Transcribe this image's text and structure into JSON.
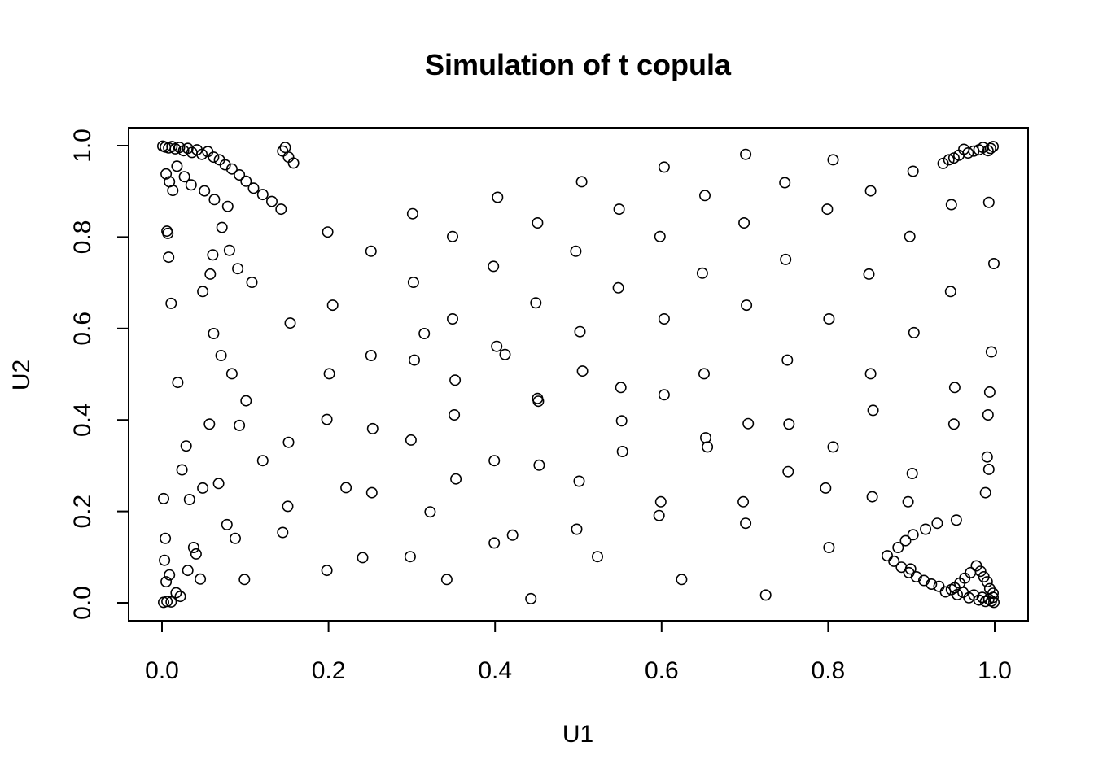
{
  "chart_data": {
    "type": "scatter",
    "title": "Simulation of t copula",
    "xlabel": "U1",
    "ylabel": "U2",
    "xlim": [
      0.0,
      1.0
    ],
    "ylim": [
      0.0,
      1.0
    ],
    "xticks": [
      "0.0",
      "0.2",
      "0.4",
      "0.6",
      "0.8",
      "1.0"
    ],
    "yticks": [
      "0.0",
      "0.2",
      "0.4",
      "0.6",
      "0.8",
      "1.0"
    ],
    "grid": false,
    "marker": "open circle",
    "series": [
      {
        "points": [
          [
            0.001,
            0.999
          ],
          [
            0.004,
            0.997
          ],
          [
            0.008,
            0.995
          ],
          [
            0.012,
            0.998
          ],
          [
            0.016,
            0.993
          ],
          [
            0.021,
            0.996
          ],
          [
            0.026,
            0.989
          ],
          [
            0.031,
            0.994
          ],
          [
            0.036,
            0.985
          ],
          [
            0.042,
            0.991
          ],
          [
            0.048,
            0.981
          ],
          [
            0.055,
            0.987
          ],
          [
            0.062,
            0.975
          ],
          [
            0.069,
            0.969
          ],
          [
            0.076,
            0.958
          ],
          [
            0.084,
            0.949
          ],
          [
            0.093,
            0.936
          ],
          [
            0.101,
            0.922
          ],
          [
            0.11,
            0.907
          ],
          [
            0.121,
            0.893
          ],
          [
            0.132,
            0.878
          ],
          [
            0.143,
            0.861
          ],
          [
            0.148,
            0.996
          ],
          [
            0.145,
            0.988
          ],
          [
            0.152,
            0.975
          ],
          [
            0.158,
            0.962
          ],
          [
            0.018,
            0.955
          ],
          [
            0.027,
            0.932
          ],
          [
            0.035,
            0.914
          ],
          [
            0.051,
            0.901
          ],
          [
            0.063,
            0.882
          ],
          [
            0.079,
            0.867
          ],
          [
            0.005,
            0.938
          ],
          [
            0.009,
            0.921
          ],
          [
            0.013,
            0.902
          ],
          [
            0.006,
            0.813
          ],
          [
            0.007,
            0.808
          ],
          [
            0.008,
            0.756
          ],
          [
            0.011,
            0.655
          ],
          [
            0.019,
            0.482
          ],
          [
            0.024,
            0.291
          ],
          [
            0.029,
            0.343
          ],
          [
            0.033,
            0.226
          ],
          [
            0.038,
            0.121
          ],
          [
            0.041,
            0.107
          ],
          [
            0.046,
            0.052
          ],
          [
            0.009,
            0.061
          ],
          [
            0.005,
            0.046
          ],
          [
            0.002,
            0.001
          ],
          [
            0.006,
            0.003
          ],
          [
            0.011,
            0.002
          ],
          [
            0.017,
            0.022
          ],
          [
            0.022,
            0.014
          ],
          [
            0.031,
            0.071
          ],
          [
            0.999,
            0.001
          ],
          [
            0.996,
            0.004
          ],
          [
            0.993,
            0.008
          ],
          [
            0.989,
            0.003
          ],
          [
            0.985,
            0.012
          ],
          [
            0.981,
            0.006
          ],
          [
            0.975,
            0.017
          ],
          [
            0.969,
            0.011
          ],
          [
            0.962,
            0.023
          ],
          [
            0.955,
            0.018
          ],
          [
            0.948,
            0.029
          ],
          [
            0.941,
            0.024
          ],
          [
            0.933,
            0.036
          ],
          [
            0.924,
            0.041
          ],
          [
            0.915,
            0.049
          ],
          [
            0.906,
            0.057
          ],
          [
            0.897,
            0.066
          ],
          [
            0.888,
            0.078
          ],
          [
            0.879,
            0.091
          ],
          [
            0.871,
            0.103
          ],
          [
            0.884,
            0.121
          ],
          [
            0.893,
            0.136
          ],
          [
            0.902,
            0.149
          ],
          [
            0.917,
            0.161
          ],
          [
            0.931,
            0.174
          ],
          [
            0.998,
            0.021
          ],
          [
            0.994,
            0.031
          ],
          [
            0.991,
            0.046
          ],
          [
            0.987,
            0.057
          ],
          [
            0.983,
            0.069
          ],
          [
            0.978,
            0.081
          ],
          [
            0.971,
            0.066
          ],
          [
            0.964,
            0.054
          ],
          [
            0.958,
            0.043
          ],
          [
            0.952,
            0.033
          ],
          [
            0.998,
            0.998
          ],
          [
            0.995,
            0.994
          ],
          [
            0.992,
            0.989
          ],
          [
            0.986,
            0.996
          ],
          [
            0.981,
            0.991
          ],
          [
            0.975,
            0.988
          ],
          [
            0.968,
            0.984
          ],
          [
            0.963,
            0.992
          ],
          [
            0.957,
            0.979
          ],
          [
            0.951,
            0.973
          ],
          [
            0.945,
            0.969
          ],
          [
            0.938,
            0.961
          ],
          [
            0.998,
            0.012
          ],
          [
            0.993,
            0.876
          ],
          [
            0.999,
            0.742
          ],
          [
            0.996,
            0.549
          ],
          [
            0.994,
            0.461
          ],
          [
            0.992,
            0.411
          ],
          [
            0.991,
            0.319
          ],
          [
            0.993,
            0.292
          ],
          [
            0.989,
            0.241
          ],
          [
            0.002,
            0.228
          ],
          [
            0.004,
            0.141
          ],
          [
            0.003,
            0.093
          ],
          [
            0.108,
            0.701
          ],
          [
            0.205,
            0.651
          ],
          [
            0.315,
            0.589
          ],
          [
            0.412,
            0.543
          ],
          [
            0.505,
            0.507
          ],
          [
            0.603,
            0.455
          ],
          [
            0.704,
            0.392
          ],
          [
            0.806,
            0.341
          ],
          [
            0.901,
            0.283
          ],
          [
            0.154,
            0.612
          ],
          [
            0.251,
            0.541
          ],
          [
            0.352,
            0.487
          ],
          [
            0.451,
            0.447
          ],
          [
            0.552,
            0.398
          ],
          [
            0.655,
            0.341
          ],
          [
            0.752,
            0.287
          ],
          [
            0.853,
            0.232
          ],
          [
            0.954,
            0.181
          ],
          [
            0.101,
            0.442
          ],
          [
            0.198,
            0.401
          ],
          [
            0.299,
            0.356
          ],
          [
            0.399,
            0.311
          ],
          [
            0.501,
            0.266
          ],
          [
            0.599,
            0.221
          ],
          [
            0.701,
            0.174
          ],
          [
            0.801,
            0.121
          ],
          [
            0.899,
            0.074
          ],
          [
            0.121,
            0.311
          ],
          [
            0.221,
            0.252
          ],
          [
            0.322,
            0.199
          ],
          [
            0.421,
            0.148
          ],
          [
            0.523,
            0.101
          ],
          [
            0.624,
            0.051
          ],
          [
            0.725,
            0.017
          ],
          [
            0.145,
            0.154
          ],
          [
            0.241,
            0.099
          ],
          [
            0.342,
            0.051
          ],
          [
            0.443,
            0.009
          ],
          [
            0.199,
            0.811
          ],
          [
            0.301,
            0.851
          ],
          [
            0.403,
            0.887
          ],
          [
            0.504,
            0.921
          ],
          [
            0.603,
            0.953
          ],
          [
            0.701,
            0.981
          ],
          [
            0.806,
            0.969
          ],
          [
            0.902,
            0.944
          ],
          [
            0.251,
            0.769
          ],
          [
            0.349,
            0.801
          ],
          [
            0.451,
            0.831
          ],
          [
            0.549,
            0.861
          ],
          [
            0.652,
            0.891
          ],
          [
            0.748,
            0.919
          ],
          [
            0.851,
            0.901
          ],
          [
            0.948,
            0.871
          ],
          [
            0.302,
            0.701
          ],
          [
            0.398,
            0.736
          ],
          [
            0.497,
            0.769
          ],
          [
            0.598,
            0.801
          ],
          [
            0.699,
            0.831
          ],
          [
            0.799,
            0.861
          ],
          [
            0.898,
            0.801
          ],
          [
            0.349,
            0.621
          ],
          [
            0.449,
            0.656
          ],
          [
            0.548,
            0.689
          ],
          [
            0.649,
            0.721
          ],
          [
            0.749,
            0.751
          ],
          [
            0.849,
            0.719
          ],
          [
            0.947,
            0.681
          ],
          [
            0.201,
            0.501
          ],
          [
            0.303,
            0.531
          ],
          [
            0.402,
            0.561
          ],
          [
            0.502,
            0.593
          ],
          [
            0.603,
            0.621
          ],
          [
            0.702,
            0.651
          ],
          [
            0.801,
            0.621
          ],
          [
            0.903,
            0.591
          ],
          [
            0.152,
            0.351
          ],
          [
            0.253,
            0.381
          ],
          [
            0.351,
            0.411
          ],
          [
            0.452,
            0.441
          ],
          [
            0.551,
            0.471
          ],
          [
            0.651,
            0.501
          ],
          [
            0.751,
            0.531
          ],
          [
            0.851,
            0.501
          ],
          [
            0.952,
            0.471
          ],
          [
            0.049,
            0.251
          ],
          [
            0.151,
            0.211
          ],
          [
            0.252,
            0.241
          ],
          [
            0.353,
            0.271
          ],
          [
            0.453,
            0.301
          ],
          [
            0.553,
            0.331
          ],
          [
            0.653,
            0.361
          ],
          [
            0.753,
            0.391
          ],
          [
            0.854,
            0.421
          ],
          [
            0.951,
            0.391
          ],
          [
            0.099,
            0.051
          ],
          [
            0.198,
            0.071
          ],
          [
            0.298,
            0.101
          ],
          [
            0.399,
            0.131
          ],
          [
            0.498,
            0.161
          ],
          [
            0.597,
            0.191
          ],
          [
            0.698,
            0.221
          ],
          [
            0.797,
            0.251
          ],
          [
            0.896,
            0.221
          ],
          [
            0.062,
            0.589
          ],
          [
            0.071,
            0.541
          ],
          [
            0.084,
            0.501
          ],
          [
            0.093,
            0.388
          ],
          [
            0.057,
            0.391
          ],
          [
            0.068,
            0.261
          ],
          [
            0.078,
            0.171
          ],
          [
            0.088,
            0.141
          ],
          [
            0.049,
            0.681
          ],
          [
            0.058,
            0.719
          ],
          [
            0.061,
            0.761
          ],
          [
            0.072,
            0.821
          ],
          [
            0.081,
            0.771
          ],
          [
            0.091,
            0.731
          ]
        ]
      }
    ]
  }
}
